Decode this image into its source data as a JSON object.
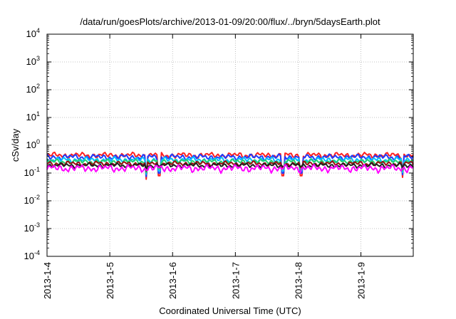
{
  "chart_data": {
    "type": "line",
    "title": "/data/run/goesPlots/archive/2013-01-09/20:00/flux/../bryn/5daysEarth.plot",
    "xlabel": "Coordinated Universal Time (UTC)",
    "ylabel": "cSv/day",
    "yscale": "log",
    "ylim": [
      0.0001,
      10000
    ],
    "xlim": [
      "2013-01-04",
      "2013-01-09 20:00"
    ],
    "grid": true,
    "legend": "none",
    "x_ticks": [
      "2013-1-4",
      "2013-1-5",
      "2013-1-6",
      "2013-1-7",
      "2013-1-8",
      "2013-1-9"
    ],
    "y_ticks": [
      {
        "base": "10",
        "exp": "-4"
      },
      {
        "base": "10",
        "exp": "-3"
      },
      {
        "base": "10",
        "exp": "-2"
      },
      {
        "base": "10",
        "exp": "-1"
      },
      {
        "base": "10",
        "exp": "0"
      },
      {
        "base": "10",
        "exp": "1"
      },
      {
        "base": "10",
        "exp": "2"
      },
      {
        "base": "10",
        "exp": "3"
      },
      {
        "base": "10",
        "exp": "4"
      }
    ],
    "series": [
      {
        "color": "#ff2020",
        "level": 0.44,
        "swing": 0.12
      },
      {
        "color": "#1f3cff",
        "level": 0.38,
        "swing": 0.1
      },
      {
        "color": "#00bfff",
        "level": 0.3,
        "swing": 0.08
      },
      {
        "color": "#20d070",
        "level": 0.26,
        "swing": 0.06
      },
      {
        "color": "#9b1010",
        "level": 0.22,
        "swing": 0.05
      },
      {
        "color": "#202020",
        "level": 0.19,
        "swing": 0.04
      },
      {
        "color": "#ff00ff",
        "level": 0.15,
        "swing": 0.05
      }
    ],
    "dips": [
      {
        "t": "2013-01-05 14:00",
        "value": 0.06
      },
      {
        "t": "2013-01-05 19:00",
        "value": 0.08
      },
      {
        "t": "2013-01-07 18:00",
        "value": 0.08
      },
      {
        "t": "2013-01-08 01:00",
        "value": 0.08
      },
      {
        "t": "2013-01-09 16:00",
        "value": 0.07
      }
    ]
  }
}
